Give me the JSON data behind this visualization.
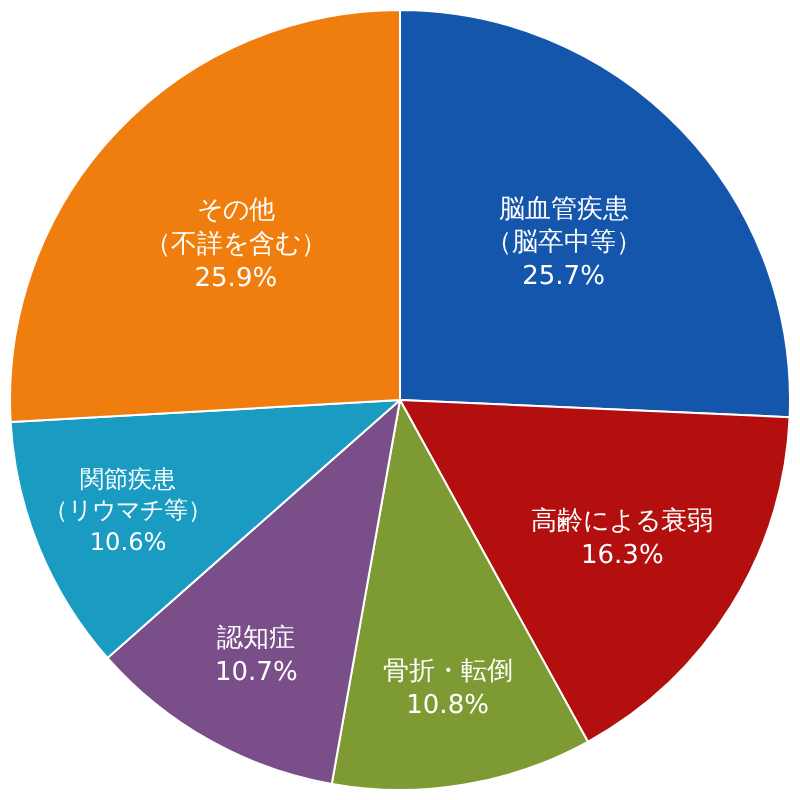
{
  "chart_data": {
    "type": "pie",
    "categories": [
      "脳血管疾患（脳卒中等）",
      "高齢による衰弱",
      "骨折・転倒",
      "認知症",
      "関節疾患（リウマチ等）",
      "その他（不詳を含む）"
    ],
    "values": [
      25.7,
      16.3,
      10.8,
      10.7,
      10.6,
      25.9
    ],
    "value_labels": [
      "25.7%",
      "16.3%",
      "10.8%",
      "10.7%",
      "10.6%",
      "25.9%"
    ],
    "colors": [
      "#1556ad",
      "#b30f0f",
      "#7d9b32",
      "#7a4e88",
      "#1a9cc2",
      "#f07e0e"
    ],
    "legend": false
  }
}
